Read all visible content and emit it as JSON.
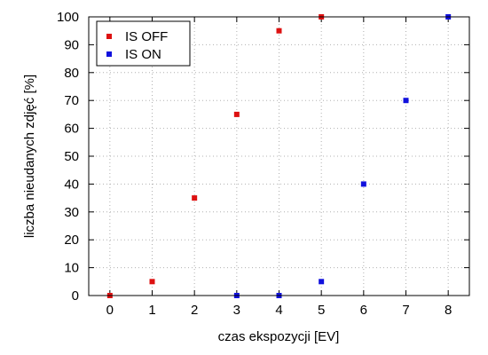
{
  "chart_data": {
    "type": "scatter",
    "xlabel": "czas ekspozycji [EV]",
    "ylabel": "liczba nieudanych zdjęć [%]",
    "xlim": [
      -0.5,
      8.5
    ],
    "ylim": [
      0,
      100
    ],
    "xticks": [
      0,
      1,
      2,
      3,
      4,
      5,
      6,
      7,
      8
    ],
    "yticks": [
      0,
      10,
      20,
      30,
      40,
      50,
      60,
      70,
      80,
      90,
      100
    ],
    "grid": true,
    "legend_position": "top-left",
    "series": [
      {
        "name": "IS OFF",
        "color": "#dd1111",
        "x": [
          0,
          1,
          2,
          3,
          4,
          5
        ],
        "y": [
          0,
          5,
          35,
          65,
          95,
          100
        ]
      },
      {
        "name": "IS ON",
        "color": "#1111dd",
        "x": [
          3,
          4,
          5,
          6,
          7,
          8
        ],
        "y": [
          0,
          0,
          5,
          40,
          70,
          100
        ]
      }
    ]
  }
}
